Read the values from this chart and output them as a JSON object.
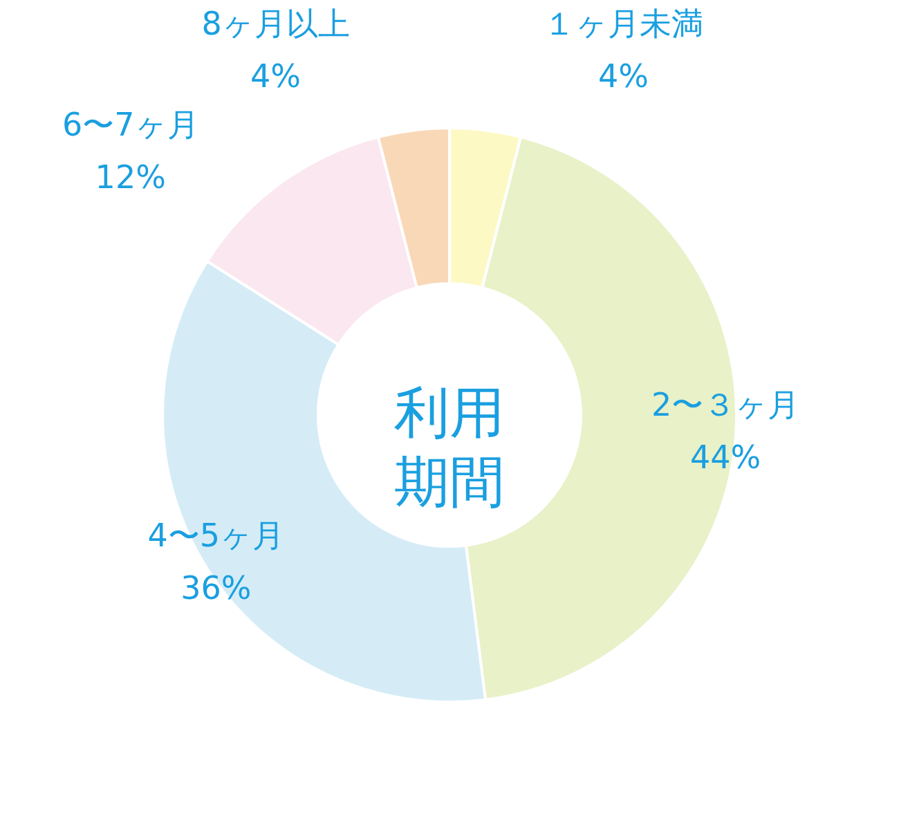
{
  "chart_data": {
    "type": "donut",
    "title": "利用期間",
    "categories": [
      "１ヶ月未満",
      "2〜３ヶ月",
      "4〜5ヶ月",
      "6〜7ヶ月",
      "8ヶ月以上"
    ],
    "values": [
      4,
      44,
      36,
      12,
      4
    ],
    "colors": [
      "#fdf9c4",
      "#e8f1c8",
      "#d5ecf7",
      "#fbe7f0",
      "#f9d8b8"
    ],
    "value_labels": [
      "4%",
      "44%",
      "36%",
      "12%",
      "4%"
    ]
  }
}
